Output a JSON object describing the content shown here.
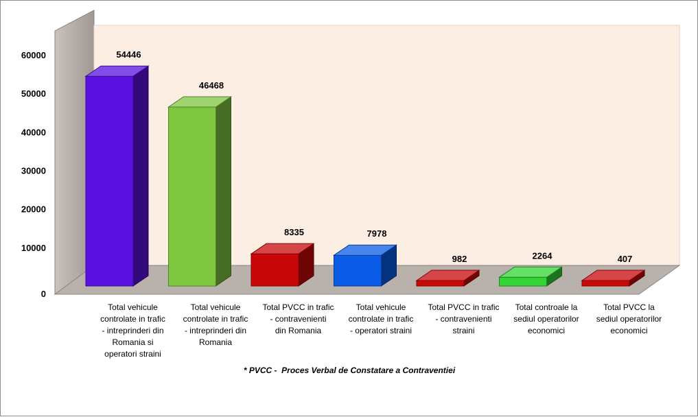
{
  "chart_data": {
    "type": "bar",
    "categories": [
      [
        "Total vehicule",
        "controlate in trafic",
        "- intreprinderi din",
        "Romania si",
        "operatori straini"
      ],
      [
        "Total vehicule",
        "controlate in trafic",
        "- intreprinderi din",
        "Romania"
      ],
      [
        "Total PVCC in trafic",
        "-  contravenienti",
        "din Romania"
      ],
      [
        "Total vehicule",
        "controlate in trafic",
        "- operatori straini"
      ],
      [
        "Total PVCC in trafic",
        "- contravenienti",
        "straini"
      ],
      [
        "Total controale la",
        "sediul operatorilor",
        "economici"
      ],
      [
        "Total PVCC la",
        "sediul operatorilor",
        "economici"
      ]
    ],
    "values": [
      54446,
      46468,
      8335,
      7978,
      982,
      2264,
      407
    ],
    "value_labels": [
      "54446",
      "46468",
      "8335",
      "7978",
      "982",
      "2264",
      "407"
    ],
    "colors": [
      "#5a10e0",
      "#7fc640",
      "#c80808",
      "#0a5ce6",
      "#c80808",
      "#33d433",
      "#c80808"
    ],
    "yticks": [
      "0",
      "10000",
      "20000",
      "30000",
      "40000",
      "50000",
      "60000"
    ],
    "ylim": [
      0,
      60000
    ],
    "grid": false,
    "legend": "none",
    "title": "",
    "xlabel": "",
    "ylabel": ""
  },
  "footnote": "* PVCC -  Proces Verbal de Constatare a Contraventiei"
}
